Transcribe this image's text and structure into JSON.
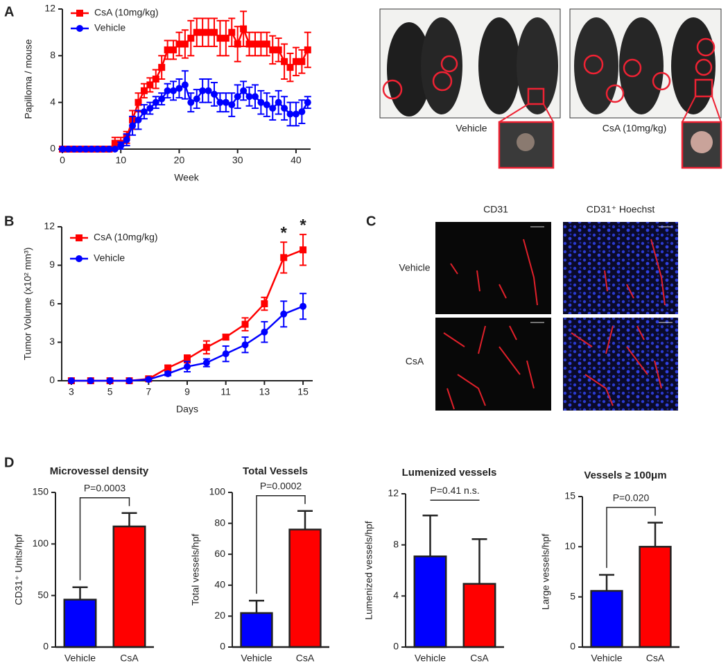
{
  "panel_labels": [
    "A",
    "B",
    "C",
    "D"
  ],
  "photos": {
    "labels": [
      "Vehicle",
      "CsA (10mg/kg)"
    ]
  },
  "micrographs": {
    "columns": [
      "CD31",
      "CD31⁺ Hoechst"
    ],
    "rows": [
      "Vehicle",
      "CsA"
    ]
  },
  "chart_data": [
    {
      "type": "line",
      "xlabel": "Week",
      "ylabel": "Papilloma / mouse",
      "x": [
        0,
        1,
        2,
        3,
        4,
        5,
        6,
        7,
        8,
        9,
        10,
        11,
        12,
        13,
        14,
        15,
        16,
        17,
        18,
        19,
        20,
        21,
        22,
        23,
        24,
        25,
        26,
        27,
        28,
        29,
        30,
        31,
        32,
        33,
        34,
        35,
        36,
        37,
        38,
        39,
        40,
        41,
        42
      ],
      "xlim": [
        0,
        42.5
      ],
      "xticks": [
        0,
        10,
        20,
        30,
        40
      ],
      "ylim": [
        0,
        12
      ],
      "yticks": [
        0,
        4,
        8,
        12
      ],
      "legend": "upper left",
      "series": [
        {
          "name": "CsA (10mg/kg)",
          "color": "#ff0000",
          "marker": "square",
          "values": [
            0,
            0,
            0,
            0,
            0,
            0,
            0,
            0,
            0,
            0.5,
            0.5,
            1,
            2.5,
            4,
            5,
            5.5,
            6,
            7,
            8.5,
            8.5,
            9,
            9,
            9.5,
            10,
            10,
            10,
            10,
            9.5,
            9.5,
            10,
            9,
            10.3,
            9,
            9,
            9,
            9,
            8.5,
            8.5,
            7.5,
            7,
            7.5,
            7.5,
            8.5
          ],
          "errors": [
            0,
            0,
            0,
            0,
            0,
            0,
            0,
            0,
            0,
            0.5,
            0.5,
            0.5,
            0.8,
            0.8,
            0.6,
            0.6,
            0.8,
            1,
            0.8,
            0.8,
            1,
            1.2,
            1.5,
            1.2,
            1.2,
            1.2,
            1.2,
            1.5,
            1.5,
            1.2,
            1.5,
            1.5,
            1,
            1,
            1,
            1,
            1.2,
            1,
            1.5,
            1.2,
            1.2,
            1,
            1.5
          ]
        },
        {
          "name": "Vehicle",
          "color": "#0000ff",
          "marker": "circle",
          "values": [
            0,
            0,
            0,
            0,
            0,
            0,
            0,
            0,
            0,
            0,
            0.3,
            0.8,
            2,
            2.5,
            3.2,
            3.5,
            4,
            4.3,
            5,
            5,
            5.2,
            5.5,
            4,
            4.3,
            5,
            5,
            4.7,
            4,
            4,
            3.8,
            4.5,
            5,
            4.5,
            4.5,
            4,
            3.8,
            3.5,
            4,
            3.5,
            3,
            3,
            3.2,
            4
          ],
          "errors": [
            0,
            0,
            0,
            0,
            0,
            0,
            0,
            0,
            0,
            0,
            0.3,
            0.5,
            0.8,
            0.8,
            0.6,
            0.5,
            0.5,
            0.5,
            0.6,
            0.8,
            0.8,
            1.2,
            0.8,
            0.8,
            1,
            1,
            1,
            0.8,
            0.8,
            1,
            1,
            0.8,
            0.8,
            1,
            1,
            1,
            1,
            1,
            1,
            1,
            1,
            1,
            0.5
          ]
        }
      ]
    },
    {
      "type": "line",
      "xlabel": "Days",
      "ylabel": "Tumor Volume (x10² mm³)",
      "x": [
        3,
        4,
        5,
        6,
        7,
        8,
        9,
        10,
        11,
        12,
        13,
        14,
        15
      ],
      "xlim": [
        2.5,
        15.5
      ],
      "xticks": [
        3,
        5,
        7,
        9,
        11,
        13,
        15
      ],
      "ylim": [
        0,
        12
      ],
      "yticks": [
        0,
        3,
        6,
        9,
        12
      ],
      "legend": "upper left",
      "annotations": [
        {
          "text": "*",
          "x": 14
        },
        {
          "text": "*",
          "x": 15
        }
      ],
      "series": [
        {
          "name": "CsA (10mg/kg)",
          "color": "#ff0000",
          "marker": "square",
          "values": [
            0,
            0,
            0,
            0,
            0.15,
            1,
            1.7,
            2.6,
            3.4,
            4.4,
            6,
            9.6,
            10.2
          ],
          "errors": [
            0,
            0,
            0,
            0,
            0.1,
            0.2,
            0.3,
            0.5,
            0.2,
            0.5,
            0.5,
            1.2,
            1.2
          ]
        },
        {
          "name": "Vehicle",
          "color": "#0000ff",
          "marker": "circle",
          "values": [
            0,
            0,
            0,
            0,
            0.1,
            0.55,
            1.1,
            1.4,
            2.1,
            2.8,
            3.8,
            5.2,
            5.8
          ],
          "errors": [
            0,
            0,
            0,
            0,
            0.05,
            0.15,
            0.4,
            0.3,
            0.6,
            0.6,
            0.8,
            1,
            1
          ]
        }
      ]
    },
    {
      "type": "bar",
      "title": "Microvessel density",
      "ylabel": "CD31⁺ Units/hpf",
      "categories": [
        "Vehicle",
        "CsA"
      ],
      "values": [
        46,
        117
      ],
      "errors": [
        12,
        13
      ],
      "colors": [
        "#0000ff",
        "#ff0000"
      ],
      "ylim": [
        0,
        150
      ],
      "yticks": [
        0,
        50,
        100,
        150
      ],
      "p_value": "P=0.0003",
      "bracket": true
    },
    {
      "type": "bar",
      "title": "Total Vessels",
      "ylabel": "Total vessels/hpf",
      "categories": [
        "Vehicle",
        "CsA"
      ],
      "values": [
        22,
        76
      ],
      "errors": [
        8,
        12
      ],
      "colors": [
        "#0000ff",
        "#ff0000"
      ],
      "ylim": [
        0,
        100
      ],
      "yticks": [
        0,
        20,
        40,
        60,
        80,
        100
      ],
      "p_value": "P=0.0002",
      "bracket": true
    },
    {
      "type": "bar",
      "title": "Lumenized vessels",
      "ylabel": "Lumenized vessels/hpf",
      "categories": [
        "Vehicle",
        "CsA"
      ],
      "values": [
        7.1,
        4.95
      ],
      "errors": [
        3.2,
        3.5
      ],
      "colors": [
        "#0000ff",
        "#ff0000"
      ],
      "ylim": [
        0,
        12
      ],
      "yticks": [
        0,
        4,
        8,
        12
      ],
      "p_value": "P=0.41 n.s.",
      "bracket": false
    },
    {
      "type": "bar",
      "title": "Vessels ≥ 100μm",
      "ylabel": "Large vessels/hpf",
      "categories": [
        "Vehicle",
        "CsA"
      ],
      "values": [
        5.6,
        10
      ],
      "errors": [
        1.6,
        2.4
      ],
      "colors": [
        "#0000ff",
        "#ff0000"
      ],
      "ylim": [
        0,
        15
      ],
      "yticks": [
        0,
        5,
        10,
        15
      ],
      "p_value": "P=0.020",
      "bracket": true
    }
  ]
}
